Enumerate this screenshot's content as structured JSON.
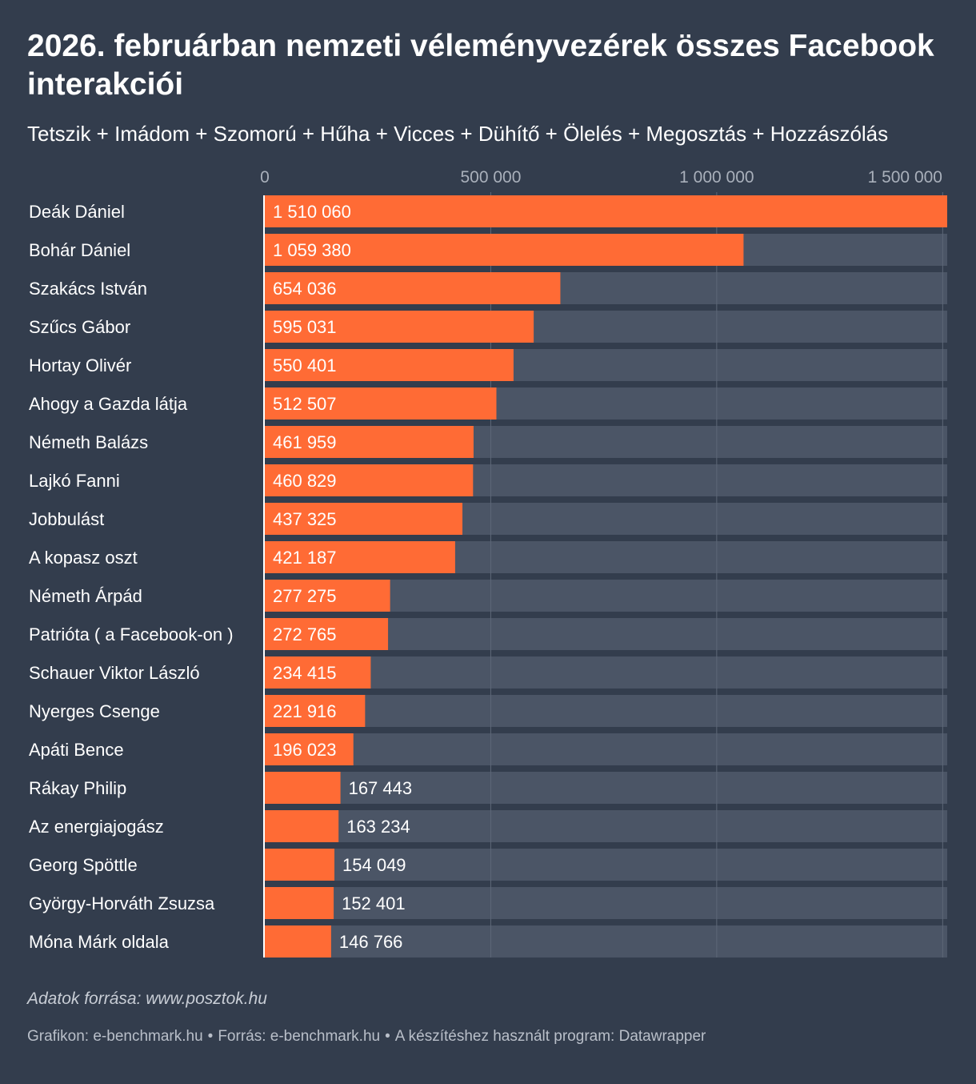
{
  "header": {
    "title": "2026. februárban nemzeti véleményvezérek összes Facebook interakciói",
    "subtitle": "Tetszik + Imádom + Szomorú + Hűha + Vicces + Dühítő + Ölelés + Megosztás + Hozzászólás"
  },
  "chart_data": {
    "type": "bar",
    "orientation": "horizontal",
    "title": "2026. februárban nemzeti véleményvezérek összes Facebook interakciói",
    "subtitle": "Tetszik + Imádom + Szomorú + Hűha + Vicces + Dühítő + Ölelés + Megosztás + Hozzászólás",
    "xlim": [
      0,
      1510060
    ],
    "ticks": [
      0,
      500000,
      1000000,
      1500000
    ],
    "tick_labels": [
      "0",
      "500 000",
      "1 000 000",
      "1 500 000"
    ],
    "categories": [
      "Deák Dániel",
      "Bohár Dániel",
      "Szakács István",
      "Szűcs Gábor",
      "Hortay Olivér",
      "Ahogy a Gazda látja",
      "Németh Balázs",
      "Lajkó Fanni",
      "Jobbulást",
      "A kopasz oszt",
      "Németh Árpád",
      "Patrióta ( a Facebook-on )",
      "Schauer Viktor László",
      "Nyerges Csenge",
      "Apáti Bence",
      "Rákay Philip",
      "Az energiajogász",
      "Georg Spöttle",
      "György-Horváth Zsuzsa",
      "Móna Márk oldala"
    ],
    "values": [
      1510060,
      1059380,
      654036,
      595031,
      550401,
      512507,
      461959,
      460829,
      437325,
      421187,
      277275,
      272765,
      234415,
      221916,
      196023,
      167443,
      163234,
      154049,
      152401,
      146766
    ],
    "value_labels": [
      "1 510 060",
      "1 059 380",
      "654 036",
      "595 031",
      "550 401",
      "512 507",
      "461 959",
      "460 829",
      "437 325",
      "421 187",
      "277 275",
      "272 765",
      "234 415",
      "221 916",
      "196 023",
      "167 443",
      "163 234",
      "154 049",
      "152 401",
      "146 766"
    ],
    "colors": {
      "bar": "#ff6b35",
      "track": "#4b5566",
      "background": "#333d4d",
      "grid": "#5e6878"
    }
  },
  "footer": {
    "source_note": "Adatok forrása: www.posztok.hu",
    "credit": "Grafikon: e-benchmark.hu",
    "source": "Forrás: e-benchmark.hu",
    "tool": "A készítéshez használt program: Datawrapper",
    "separator": "•"
  }
}
